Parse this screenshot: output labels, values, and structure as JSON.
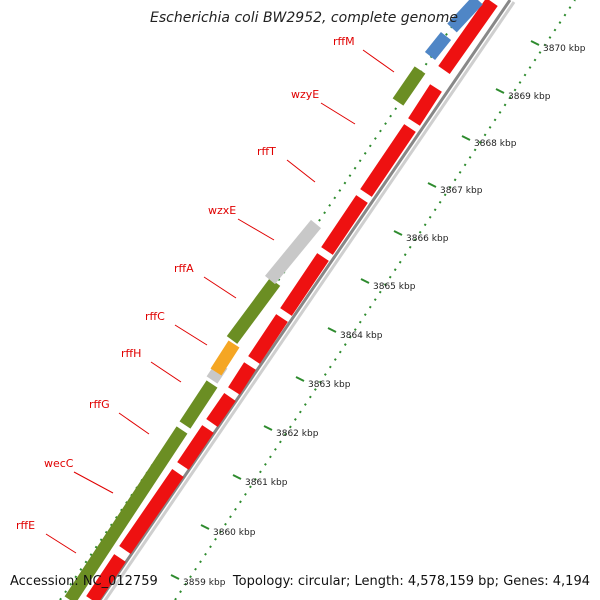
{
  "title": "Escherichia coli BW2952, complete genome",
  "footer": {
    "accession": "Accession: NC_012759",
    "topology": "Topology: circular;",
    "length": "Length: 4,578,159 bp;",
    "genes": "Genes: 4,194"
  },
  "colors": {
    "gene_label": "#e00000",
    "tick_green": "#2e8b2e",
    "forward_feature": "#ee1111",
    "reverse_feature": "#6b8e23",
    "other_feature": "#c8c8c8",
    "orange_feature": "#f5a623",
    "blue_feature": "#4f86c6"
  },
  "genes": [
    {
      "name": "rffM"
    },
    {
      "name": "wzyE"
    },
    {
      "name": "rffT"
    },
    {
      "name": "wzxE"
    },
    {
      "name": "rffA"
    },
    {
      "name": "rffC"
    },
    {
      "name": "rffH"
    },
    {
      "name": "rffG"
    },
    {
      "name": "wecC"
    },
    {
      "name": "rffE"
    }
  ],
  "scale_labels": [
    "3870 kbp",
    "3869 kbp",
    "3868 kbp",
    "3867 kbp",
    "3866 kbp",
    "3865 kbp",
    "3864 kbp",
    "3863 kbp",
    "3862 kbp",
    "3861 kbp",
    "3860 kbp",
    "3859 kbp"
  ]
}
